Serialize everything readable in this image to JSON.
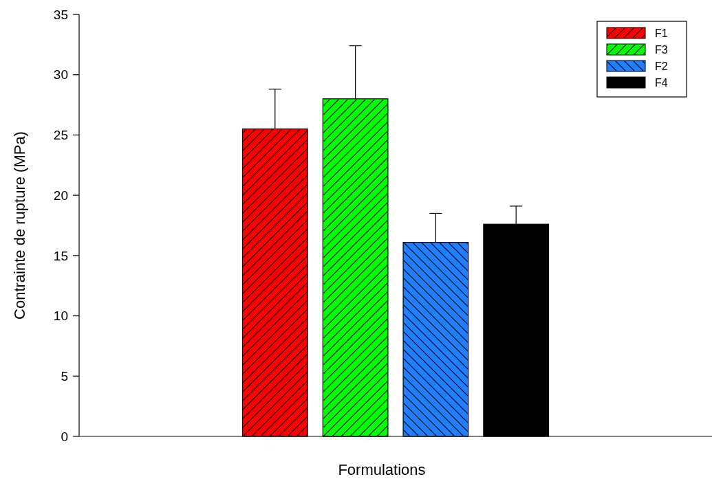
{
  "chart_data": {
    "type": "bar",
    "xlabel": "Formulations",
    "ylabel": "Contrainte de rupture (MPa)",
    "categories": [
      null
    ],
    "series": [
      {
        "name": "F1",
        "color": "#ff0000",
        "values": [
          25.5
        ],
        "errors": [
          [
            25.5,
            28.8
          ]
        ]
      },
      {
        "name": "F3",
        "color": "#00ff00",
        "values": [
          28
        ],
        "errors": [
          [
            28,
            32.4
          ]
        ]
      },
      {
        "name": "F2",
        "color": "#1e7fff",
        "values": [
          16.1
        ],
        "errors": [
          [
            16.1,
            18.5
          ]
        ]
      },
      {
        "name": "F4",
        "color": "#000000",
        "values": [
          17.6
        ],
        "errors": [
          [
            17.6,
            19.1
          ]
        ]
      }
    ],
    "ylim": [
      0,
      35
    ],
    "yticks": [
      0,
      5,
      10,
      15,
      20,
      25,
      30,
      35
    ],
    "grid": false,
    "legend": "top right"
  }
}
